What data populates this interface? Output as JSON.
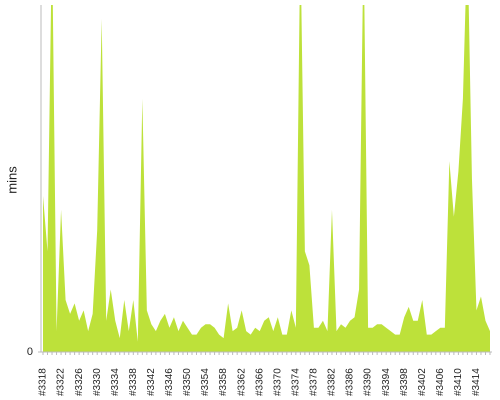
{
  "chart_data": {
    "type": "area",
    "y_label": "mins",
    "color": "#bde13a",
    "categories": [
      "#3318",
      null,
      null,
      null,
      "#3322",
      null,
      null,
      null,
      "#3326",
      null,
      null,
      null,
      "#3330",
      null,
      null,
      null,
      "#3334",
      null,
      null,
      null,
      "#3338",
      null,
      null,
      null,
      "#3342",
      null,
      null,
      null,
      "#3346",
      null,
      null,
      null,
      "#3350",
      null,
      null,
      null,
      "#3354",
      null,
      null,
      null,
      "#3358",
      null,
      null,
      null,
      "#3362",
      null,
      null,
      null,
      "#3366",
      null,
      null,
      null,
      "#3370",
      null,
      null,
      null,
      "#3374",
      null,
      null,
      null,
      "#3378",
      null,
      null,
      null,
      "#3382",
      null,
      null,
      null,
      "#3386",
      null,
      null,
      null,
      "#3390",
      null,
      null,
      null,
      "#3394",
      null,
      null,
      null,
      "#3398",
      null,
      null,
      null,
      "#3402",
      null,
      null,
      null,
      "#3406",
      null,
      null,
      null,
      "#3410",
      null,
      null,
      null,
      "#3414",
      null,
      null,
      null
    ],
    "values": [
      45,
      29,
      120,
      6,
      41,
      15,
      11,
      14,
      9,
      12,
      6,
      11,
      35,
      96,
      9,
      18,
      9,
      4,
      15,
      6,
      15,
      3,
      73,
      12,
      8,
      6,
      9,
      11,
      7,
      10,
      6,
      9,
      7,
      5,
      5,
      7,
      8,
      8,
      7,
      5,
      4,
      14,
      6,
      7,
      12,
      6,
      5,
      7,
      6,
      9,
      10,
      6,
      10,
      5,
      5,
      12,
      7,
      120,
      29,
      25,
      7,
      7,
      9,
      6,
      41,
      6,
      8,
      7,
      9,
      10,
      18,
      120,
      7,
      7,
      8,
      8,
      7,
      6,
      5,
      5,
      10,
      13,
      9,
      9,
      15,
      5,
      5,
      6,
      7,
      7,
      55,
      39,
      52,
      73,
      120,
      50,
      12,
      16,
      9,
      6
    ],
    "ylim": [
      0,
      100
    ],
    "yticks": [
      0
    ]
  }
}
